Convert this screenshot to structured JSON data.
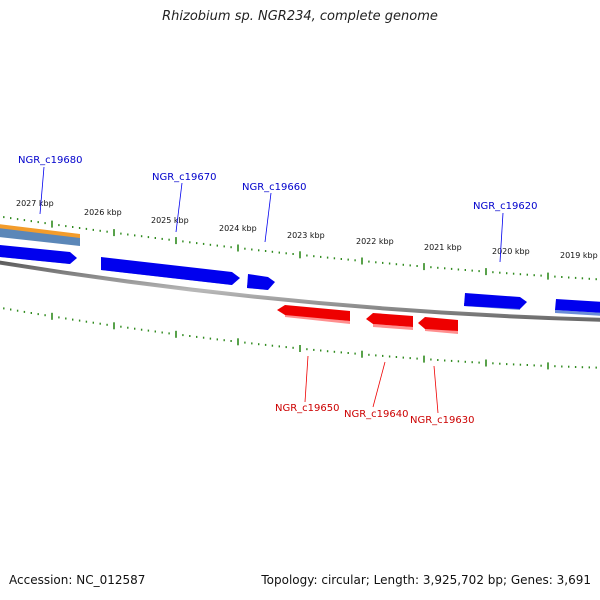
{
  "title": "Rhizobium sp. NGR234, complete genome",
  "footer": {
    "accession_label": "Accession:",
    "accession": "NC_012587",
    "info": "Topology: circular; Length: 3,925,702 bp; Genes: 3,691"
  },
  "colors": {
    "forward_gene": "#0000ee",
    "forward_gene_shade": "#6a8cd8",
    "reverse_gene": "#ee0000",
    "reverse_gene_shade": "#ff8f8f",
    "backbone": "#7a7a7a",
    "ticks": "#2f8a1e",
    "highlight_orange": "#f39c2b",
    "highlight_steel": "#5b87b8"
  },
  "kbp_ticks": [
    "2027 kbp",
    "2026 kbp",
    "2025 kbp",
    "2024 kbp",
    "2023 kbp",
    "2022 kbp",
    "2021 kbp",
    "2020 kbp",
    "2019 kbp"
  ],
  "genes_forward": [
    "NGR_c19680",
    "NGR_c19670",
    "NGR_c19660",
    "NGR_c19620"
  ],
  "genes_reverse": [
    "NGR_c19650",
    "NGR_c19640",
    "NGR_c19630"
  ]
}
